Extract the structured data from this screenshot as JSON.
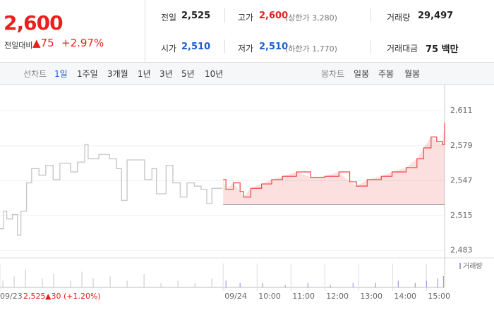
{
  "quote": {
    "price": "2,600",
    "change_label": "전일대비",
    "change": "▲75",
    "change_pct": "+2.97%"
  },
  "stats": [
    {
      "label": "전일",
      "value": "2,525"
    },
    {
      "label": "고가",
      "value": "2,600",
      "note": "(상한가 3,280)"
    },
    {
      "label": "거래량",
      "value": "29,497"
    },
    {
      "label": "시가",
      "value": "2,510"
    },
    {
      "label": "저가",
      "value": "2,510",
      "note": "(하한가 1,770)"
    },
    {
      "label": "거래대금",
      "value": "75 백만"
    }
  ],
  "tabs": {
    "line_label": "선차트",
    "line": [
      "1일",
      "1주일",
      "3개월",
      "1년",
      "3년",
      "5년",
      "10년"
    ],
    "active": 0,
    "candle_label": "봉차트",
    "candle": [
      "일봉",
      "주봉",
      "월봉"
    ]
  },
  "footer": {
    "price": "2,525",
    "change": "▲30 (+1.20%)"
  },
  "chart_data": {
    "type": "line",
    "xlim": [
      -395,
      392
    ],
    "xticks": [
      {
        "value": -395,
        "label": "09/23"
      },
      {
        "value": 0,
        "label": "09/24"
      },
      {
        "value": 60,
        "label": "10:00"
      },
      {
        "value": 120,
        "label": "11:00"
      },
      {
        "value": 180,
        "label": "12:00"
      },
      {
        "value": 240,
        "label": "13:00"
      },
      {
        "value": 300,
        "label": "14:00"
      },
      {
        "value": 360,
        "label": "15:00"
      }
    ],
    "ylim": [
      2477,
      2635
    ],
    "yticks": [
      {
        "value": 2483,
        "label": "2,483"
      },
      {
        "value": 2515,
        "label": "2,515"
      },
      {
        "value": 2547,
        "label": "2,547"
      },
      {
        "value": 2579,
        "label": "2,579"
      },
      {
        "value": 2611,
        "label": "2,611"
      }
    ],
    "grid": true,
    "baseline": 2525,
    "series": [
      {
        "color": "#c4c4c4",
        "fill": false,
        "x": [
          -395,
          -389,
          -383,
          -373,
          -364,
          -358,
          -348,
          -339,
          -326,
          -314,
          -301,
          -289,
          -270,
          -258,
          -245,
          -239,
          -220,
          -201,
          -189,
          -180,
          -170,
          -151,
          -139,
          -126,
          -118,
          -101,
          -89,
          -76,
          -64,
          -51,
          -39,
          -29,
          -20,
          -1
        ],
        "values": [
          2503,
          2519,
          2512,
          2516,
          2497,
          2519,
          2545,
          2558,
          2552,
          2561,
          2548,
          2563,
          2555,
          2564,
          2580,
          2567,
          2571,
          2567,
          2558,
          2529,
          2566,
          2566,
          2548,
          2558,
          2535,
          2561,
          2545,
          2532,
          2545,
          2542,
          2539,
          2526,
          2540,
          2540
        ]
      },
      {
        "color": "#f05050",
        "fill": true,
        "x": [
          0,
          5,
          18,
          30,
          36,
          49,
          68,
          86,
          105,
          130,
          155,
          180,
          205,
          224,
          236,
          255,
          280,
          299,
          324,
          343,
          355,
          368,
          378,
          388,
          392
        ],
        "values": [
          2548,
          2539,
          2545,
          2537,
          2532,
          2540,
          2544,
          2548,
          2551,
          2555,
          2550,
          2551,
          2555,
          2546,
          2542,
          2548,
          2551,
          2555,
          2559,
          2567,
          2577,
          2587,
          2583,
          2580,
          2600
        ]
      }
    ],
    "volume": {
      "name": "거래량",
      "color": "#a89ad8",
      "prev_color": "#cfcfcf",
      "lim": [
        0,
        10
      ],
      "x": [
        -390,
        -370,
        -350,
        -320,
        -300,
        -270,
        -250,
        -230,
        -200,
        -170,
        -140,
        -110,
        -80,
        -50,
        -20,
        5,
        30,
        70,
        110,
        150,
        190,
        230,
        270,
        310,
        340,
        360,
        380,
        390
      ],
      "values": [
        3,
        5,
        8,
        4,
        6,
        3,
        7,
        4,
        5,
        3,
        6,
        2,
        3,
        2,
        4,
        3,
        2,
        2,
        1,
        2,
        1,
        2,
        2,
        3,
        2,
        3,
        4,
        5
      ]
    }
  }
}
